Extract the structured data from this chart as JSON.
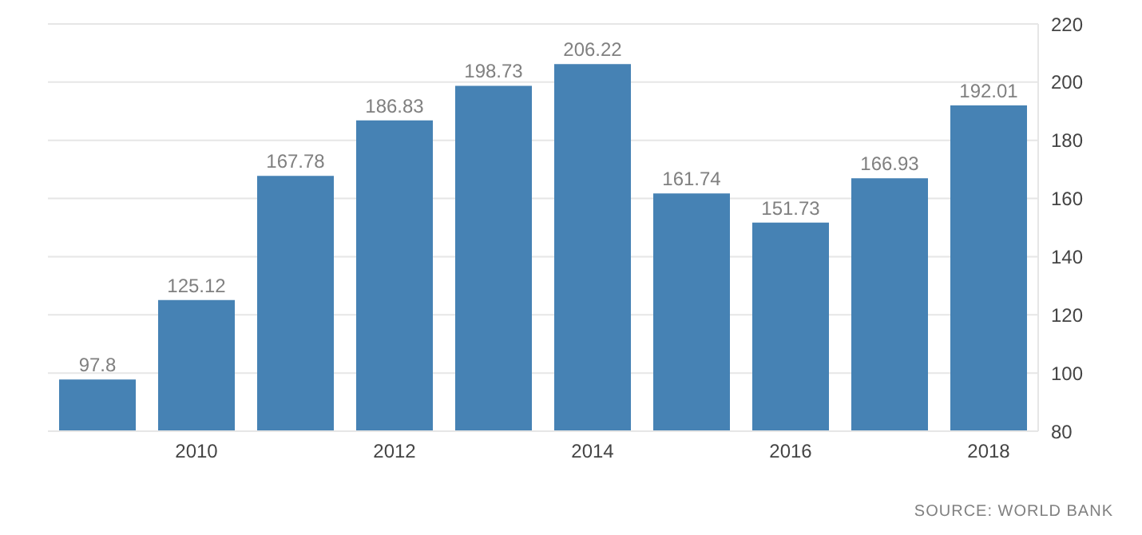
{
  "chart_data": {
    "type": "bar",
    "categories": [
      null,
      "2010",
      null,
      "2012",
      null,
      "2014",
      null,
      "2016",
      null,
      "2018"
    ],
    "values": [
      97.8,
      125.12,
      167.78,
      186.83,
      198.73,
      206.22,
      161.74,
      151.73,
      166.93,
      192.01
    ],
    "color": "#4682b4",
    "ylim": [
      80,
      220
    ],
    "yticks": [
      80,
      100,
      120,
      140,
      160,
      180,
      200,
      220
    ],
    "grid": "y",
    "data_labels": true,
    "annotations": [
      "SOURCE: WORLD BANK"
    ]
  }
}
